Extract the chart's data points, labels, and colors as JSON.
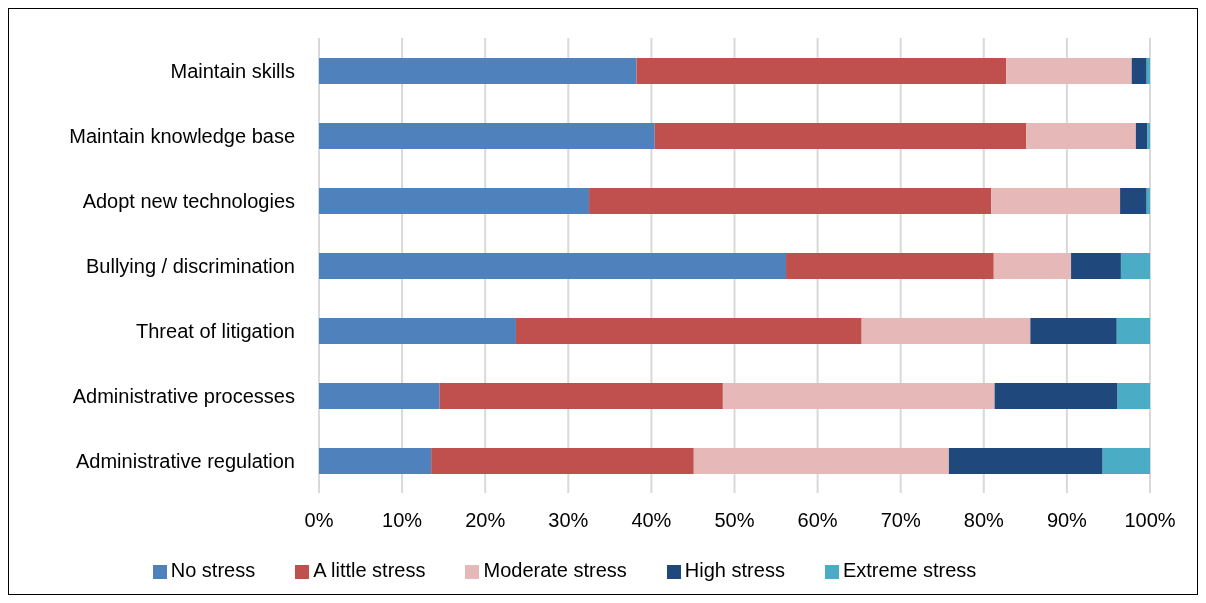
{
  "chart_data": {
    "type": "bar",
    "orientation": "horizontal",
    "stacked": true,
    "categories": [
      "Maintain skills",
      "Maintain knowledge base",
      "Adopt new technologies",
      "Bullying / discrimination",
      "Threat of litigation",
      "Administrative processes",
      "Administrative regulation"
    ],
    "series": [
      {
        "name": "No stress",
        "color": "#4f81bd",
        "values": [
          38.2,
          40.4,
          32.5,
          56.2,
          23.7,
          14.5,
          13.5
        ]
      },
      {
        "name": "A little stress",
        "color": "#c0504d",
        "values": [
          44.5,
          44.7,
          48.4,
          25.0,
          41.6,
          34.1,
          31.6
        ]
      },
      {
        "name": "Moderate stress",
        "color": "#e6b9b8",
        "values": [
          15.1,
          13.2,
          15.5,
          9.3,
          20.3,
          32.7,
          30.7
        ]
      },
      {
        "name": "High stress",
        "color": "#1f497d",
        "values": [
          1.8,
          1.4,
          3.2,
          6.0,
          10.4,
          14.8,
          18.5
        ]
      },
      {
        "name": "Extreme stress",
        "color": "#4bacc6",
        "values": [
          0.4,
          0.3,
          0.4,
          3.5,
          4.0,
          3.9,
          5.7
        ]
      }
    ],
    "xlim": [
      0,
      100
    ],
    "xticks": [
      {
        "value": 0,
        "label": "0%"
      },
      {
        "value": 10,
        "label": "10%"
      },
      {
        "value": 20,
        "label": "20%"
      },
      {
        "value": 30,
        "label": "30%"
      },
      {
        "value": 40,
        "label": "40%"
      },
      {
        "value": 50,
        "label": "50%"
      },
      {
        "value": 60,
        "label": "60%"
      },
      {
        "value": 70,
        "label": "70%"
      },
      {
        "value": 80,
        "label": "80%"
      },
      {
        "value": 90,
        "label": "90%"
      },
      {
        "value": 100,
        "label": "100%"
      }
    ],
    "grid": "x",
    "legend": "bottom"
  }
}
